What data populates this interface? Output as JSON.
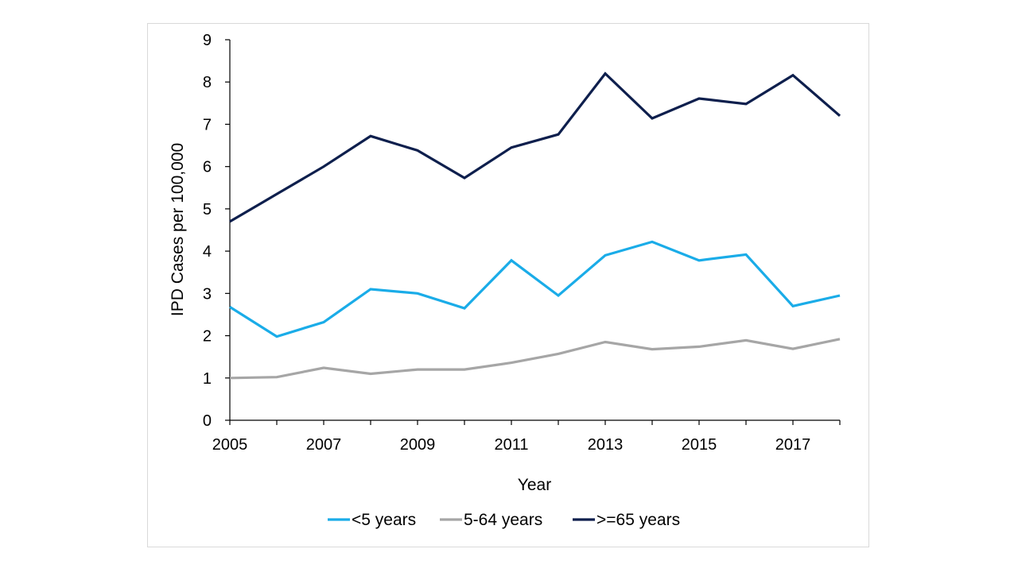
{
  "chart_data": {
    "type": "line",
    "title": "",
    "xlabel": "Year",
    "ylabel": "IPD Cases per 100,000",
    "x": [
      2005,
      2006,
      2007,
      2008,
      2009,
      2010,
      2011,
      2012,
      2013,
      2014,
      2015,
      2016,
      2017,
      2018
    ],
    "x_tick_labels": [
      "2005",
      "2007",
      "2009",
      "2011",
      "2013",
      "2015",
      "2017"
    ],
    "y_tick_labels": [
      "0",
      "1",
      "2",
      "3",
      "4",
      "5",
      "6",
      "7",
      "8",
      "9"
    ],
    "xlim": [
      2005,
      2018
    ],
    "ylim": [
      0,
      9
    ],
    "grid": false,
    "legend_position": "bottom",
    "series": [
      {
        "name": "<5 years",
        "color": "#1aace8",
        "values": [
          2.68,
          1.98,
          2.32,
          3.1,
          3.0,
          2.65,
          3.78,
          2.95,
          3.9,
          4.22,
          3.78,
          3.92,
          2.7,
          2.95
        ]
      },
      {
        "name": "5-64 years",
        "color": "#a6a6a6",
        "values": [
          1.0,
          1.02,
          1.24,
          1.1,
          1.2,
          1.2,
          1.36,
          1.57,
          1.85,
          1.68,
          1.74,
          1.89,
          1.69,
          1.92
        ]
      },
      {
        "name": ">=65 years",
        "color": "#0e1f4d",
        "values": [
          4.7,
          5.35,
          6.0,
          6.72,
          6.38,
          5.73,
          6.45,
          6.76,
          8.2,
          7.14,
          7.61,
          7.48,
          8.16,
          7.2
        ]
      }
    ]
  }
}
